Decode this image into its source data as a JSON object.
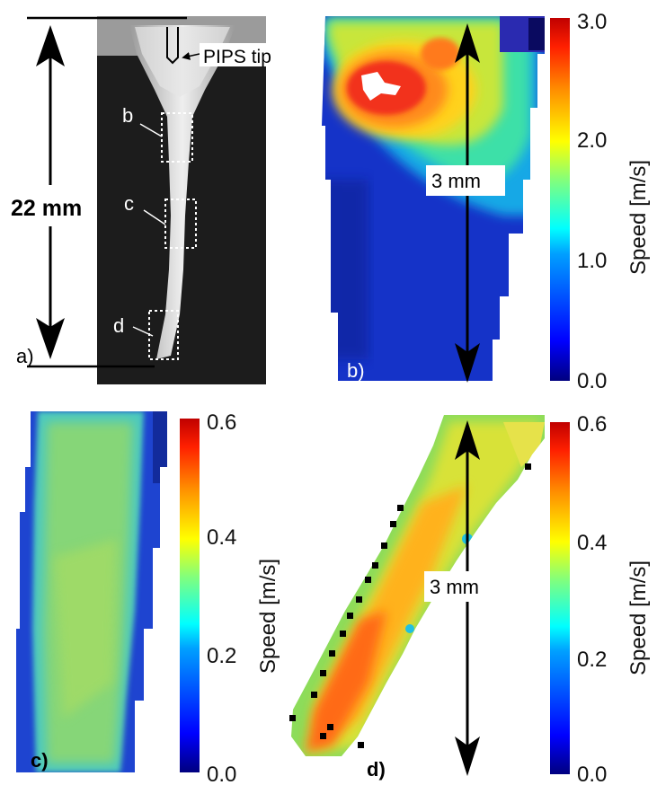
{
  "panels": {
    "a": {
      "label": "a)",
      "scale_label": "22 mm",
      "tip_label": "PIPS tip",
      "roi_labels": [
        "b",
        "c",
        "d"
      ]
    },
    "b": {
      "label": "b)",
      "scale_label": "3 mm",
      "colorbar": {
        "label": "Speed [m/s]",
        "ticks": [
          "0.0",
          "1.0",
          "2.0",
          "3.0"
        ],
        "min": 0,
        "max": 3.0
      }
    },
    "c": {
      "label": "c)",
      "colorbar": {
        "label": "Speed [m/s]",
        "ticks": [
          "0.0",
          "0.2",
          "0.4",
          "0.6"
        ],
        "min": 0,
        "max": 0.6
      }
    },
    "d": {
      "label": "d)",
      "scale_label": "3 mm",
      "colorbar": {
        "label": "Speed [m/s]",
        "ticks": [
          "0.0",
          "0.2",
          "0.4",
          "0.6"
        ],
        "min": 0,
        "max": 0.6
      }
    }
  },
  "colors": {
    "jet": [
      "#00007f",
      "#0000ff",
      "#007fff",
      "#00ffff",
      "#7fff7f",
      "#ffff00",
      "#ff7f00",
      "#ff0000",
      "#7f0000"
    ],
    "photo_bg": "#1c1c1c",
    "canal": "#d6d6d6"
  }
}
